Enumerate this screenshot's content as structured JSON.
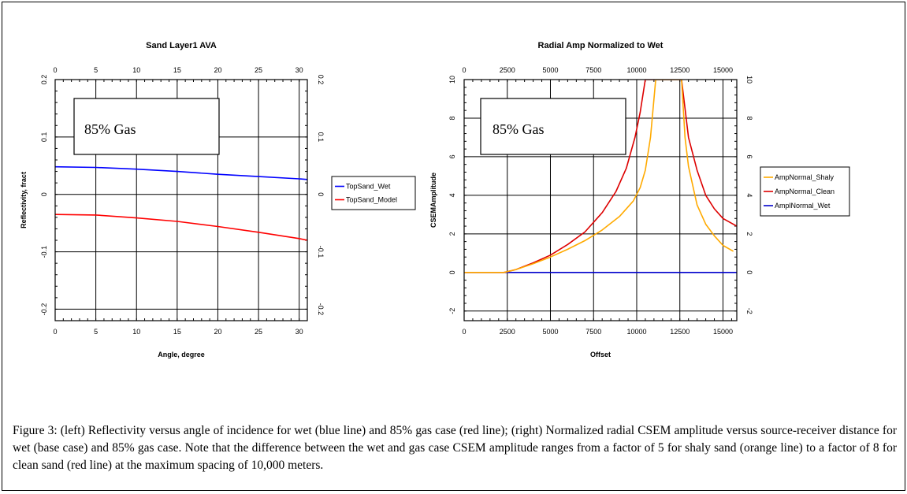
{
  "chart_data": [
    {
      "type": "line",
      "title": "Sand Layer1 AVA",
      "xlabel": "Angle, degree",
      "ylabel": "Reflectivity, fract",
      "xlim": [
        0,
        31
      ],
      "ylim": [
        -0.22,
        0.2
      ],
      "xticks": [
        0,
        5,
        10,
        15,
        20,
        25,
        30
      ],
      "yticks": [
        -0.2,
        -0.1,
        0,
        0.1,
        0.2
      ],
      "ytick_labels": [
        "-0.2",
        "-0.1",
        "0",
        "0.1",
        "0.2"
      ],
      "grid": true,
      "legend_position": "right",
      "annotation": "85% Gas",
      "series": [
        {
          "name": "TopSand_Wet",
          "color": "#0000ff",
          "x": [
            0,
            5,
            10,
            15,
            20,
            25,
            30,
            31
          ],
          "y": [
            0.048,
            0.047,
            0.044,
            0.04,
            0.035,
            0.031,
            0.027,
            0.026
          ]
        },
        {
          "name": "TopSand_Model",
          "color": "#ff0000",
          "x": [
            0,
            5,
            10,
            15,
            20,
            25,
            30,
            31
          ],
          "y": [
            -0.035,
            -0.036,
            -0.041,
            -0.047,
            -0.056,
            -0.066,
            -0.077,
            -0.08
          ]
        }
      ]
    },
    {
      "type": "line",
      "title": "Radial Amp Normalized to Wet",
      "xlabel": "Offset",
      "ylabel": "CSEMAmplitude",
      "xlim": [
        0,
        15800
      ],
      "ylim": [
        -2.5,
        10
      ],
      "xticks": [
        0,
        2500,
        5000,
        7500,
        10000,
        12500,
        15000
      ],
      "yticks": [
        -2,
        0,
        2,
        4,
        6,
        8,
        10
      ],
      "ytick_labels": [
        "-2",
        "0",
        "2",
        "4",
        "6",
        "8",
        "10"
      ],
      "grid": true,
      "legend_position": "right",
      "annotation": "85% Gas",
      "series": [
        {
          "name": "AmpNormal_Shaly",
          "color": "#ffaa00",
          "x": [
            0,
            2300,
            3000,
            4000,
            5000,
            6000,
            7000,
            8000,
            9000,
            9800,
            10200,
            10500,
            10800,
            11100,
            12600,
            12800,
            13000,
            13500,
            14000,
            14500,
            15000,
            15600
          ],
          "y": [
            0,
            0,
            0.15,
            0.45,
            0.8,
            1.2,
            1.65,
            2.2,
            2.9,
            3.7,
            4.4,
            5.3,
            7.0,
            10.0,
            10.0,
            7.0,
            5.5,
            3.5,
            2.5,
            1.9,
            1.4,
            1.1
          ]
        },
        {
          "name": "AmpNormal_Clean",
          "color": "#dd0000",
          "x": [
            0,
            2300,
            3000,
            4000,
            5000,
            6000,
            7000,
            8000,
            8800,
            9400,
            9900,
            10200,
            10500,
            12600,
            12800,
            13000,
            13500,
            14000,
            14500,
            15000,
            15800
          ],
          "y": [
            0,
            0,
            0.15,
            0.5,
            0.9,
            1.45,
            2.1,
            3.1,
            4.2,
            5.4,
            7.0,
            8.3,
            10.0,
            10.0,
            8.5,
            7.0,
            5.3,
            4.0,
            3.3,
            2.8,
            2.4
          ]
        },
        {
          "name": "AmplNormal_Wet",
          "color": "#0000cc",
          "x": [
            0,
            15800
          ],
          "y": [
            0,
            0
          ]
        }
      ]
    }
  ],
  "caption": "Figure 3:  (left) Reflectivity versus angle of incidence for wet (blue line) and 85% gas case (red line); (right) Normalized radial CSEM amplitude versus source-receiver distance for wet (base case) and 85% gas case.  Note that the difference between the wet and gas case CSEM amplitude ranges from a factor of 5 for shaly sand (orange line) to a factor of 8 for clean sand (red line) at the maximum spacing of 10,000 meters."
}
